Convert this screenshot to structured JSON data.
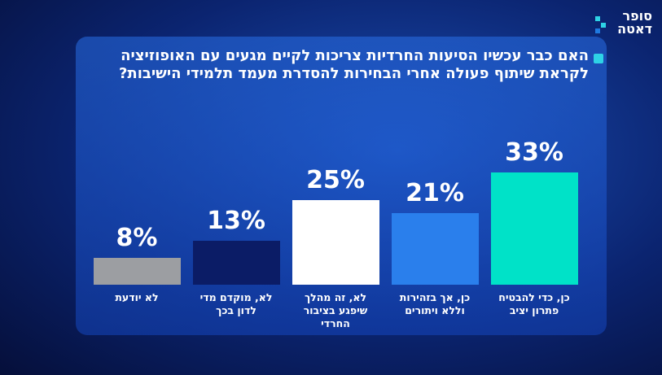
{
  "logo": [
    "סופר",
    "דאטה"
  ],
  "chart_data": {
    "type": "bar",
    "title": "האם כבר עכשיו הסיעות החרדיות צריכות לקיים מגעים עם האופוזיציה לקראת שיתוף פעולה אחרי הבחירות להסדרת מעמד תלמידי הישיבות?",
    "categories": [
      "כן, כדי להבטיח פתרון יציב",
      "כן, אך בזהירות וללא ויתורים",
      "לא, זה מהלך שיפגע בציבור החרדי",
      "לא, מוקדם מדי לדון בכך",
      "לא יודעת"
    ],
    "values": [
      33,
      21,
      25,
      13,
      8
    ],
    "value_labels": [
      "33%",
      "21%",
      "25%",
      "13%",
      "8%"
    ],
    "colors": [
      "#00e2c8",
      "#2a7fec",
      "#ffffff",
      "#0b1c66",
      "#9c9ea2"
    ]
  }
}
